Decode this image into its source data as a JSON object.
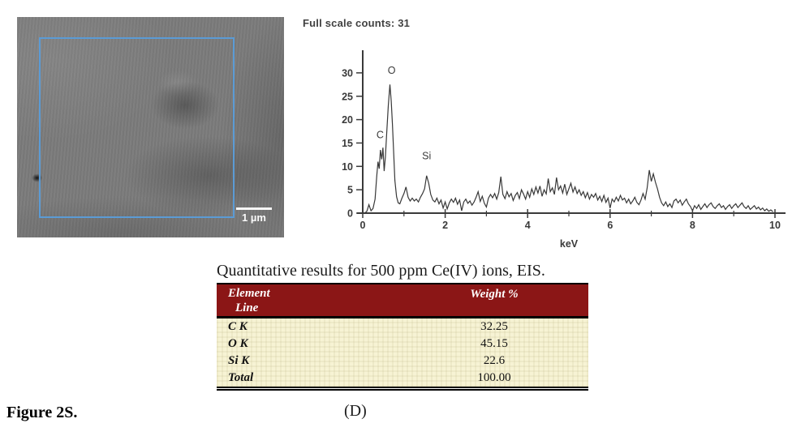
{
  "figure": {
    "figure_label": "Figure 2S.",
    "panel_label": "(D)"
  },
  "sem_image": {
    "scale_bar_label": "1 µm",
    "roi_color": "#5b9bd5",
    "image_base_color": "#7b7b7b"
  },
  "spectrum": {
    "header": "Full scale counts: 31"
  },
  "chart_data": {
    "type": "line",
    "title": "Full scale counts: 31",
    "xlabel": "keV",
    "ylabel": "",
    "xlim": [
      0,
      10.2
    ],
    "ylim": [
      0,
      33
    ],
    "x_ticks": [
      0,
      2,
      4,
      6,
      8,
      10
    ],
    "x_minor_ticks": [
      1,
      3,
      5,
      7,
      9
    ],
    "y_ticks": [
      0,
      5,
      10,
      15,
      20,
      25,
      30
    ],
    "grid": false,
    "legend": "none",
    "axis_color": "#3a3a3a",
    "line_color": "#383838",
    "annotations": [
      {
        "label": "C",
        "x": 0.42,
        "y": 16.0
      },
      {
        "label": "O",
        "x": 0.7,
        "y": 29.8
      },
      {
        "label": "Si",
        "x": 1.55,
        "y": 11.5
      }
    ],
    "series": [
      {
        "name": "EDS spectrum (counts vs keV)",
        "points": [
          [
            0.05,
            0
          ],
          [
            0.1,
            0.4
          ],
          [
            0.15,
            1.8
          ],
          [
            0.2,
            0.5
          ],
          [
            0.25,
            1
          ],
          [
            0.3,
            3
          ],
          [
            0.34,
            8
          ],
          [
            0.37,
            11
          ],
          [
            0.4,
            9.5
          ],
          [
            0.43,
            13.5
          ],
          [
            0.46,
            11.5
          ],
          [
            0.49,
            14
          ],
          [
            0.52,
            9
          ],
          [
            0.55,
            12
          ],
          [
            0.58,
            17
          ],
          [
            0.62,
            23
          ],
          [
            0.66,
            27.5
          ],
          [
            0.69,
            24
          ],
          [
            0.72,
            19
          ],
          [
            0.75,
            13
          ],
          [
            0.78,
            7
          ],
          [
            0.82,
            3.5
          ],
          [
            0.86,
            2.2
          ],
          [
            0.9,
            2
          ],
          [
            0.95,
            3.2
          ],
          [
            1.0,
            4.2
          ],
          [
            1.05,
            5.6
          ],
          [
            1.1,
            3.4
          ],
          [
            1.15,
            2.6
          ],
          [
            1.2,
            3.2
          ],
          [
            1.25,
            2.6
          ],
          [
            1.3,
            3.0
          ],
          [
            1.35,
            2.4
          ],
          [
            1.4,
            3.4
          ],
          [
            1.45,
            4.2
          ],
          [
            1.5,
            5.2
          ],
          [
            1.55,
            8
          ],
          [
            1.6,
            6.4
          ],
          [
            1.65,
            4
          ],
          [
            1.7,
            2.8
          ],
          [
            1.75,
            2.4
          ],
          [
            1.8,
            3.2
          ],
          [
            1.85,
            2
          ],
          [
            1.9,
            2.8
          ],
          [
            1.95,
            1.1
          ],
          [
            2.0,
            2.4
          ],
          [
            2.05,
            0.9
          ],
          [
            2.1,
            2.2
          ],
          [
            2.15,
            3
          ],
          [
            2.2,
            2.3
          ],
          [
            2.25,
            3.2
          ],
          [
            2.3,
            1.9
          ],
          [
            2.35,
            2.8
          ],
          [
            2.4,
            0.5
          ],
          [
            2.45,
            2.4
          ],
          [
            2.5,
            3
          ],
          [
            2.55,
            2.1
          ],
          [
            2.6,
            2.6
          ],
          [
            2.65,
            1.7
          ],
          [
            2.7,
            2.4
          ],
          [
            2.75,
            3.4
          ],
          [
            2.8,
            4.6
          ],
          [
            2.85,
            2.5
          ],
          [
            2.9,
            3.6
          ],
          [
            2.95,
            2.1
          ],
          [
            3.0,
            1.3
          ],
          [
            3.05,
            3.2
          ],
          [
            3.1,
            4
          ],
          [
            3.15,
            3.3
          ],
          [
            3.2,
            4.2
          ],
          [
            3.25,
            3
          ],
          [
            3.3,
            4.4
          ],
          [
            3.35,
            7.8
          ],
          [
            3.4,
            4
          ],
          [
            3.45,
            3.1
          ],
          [
            3.5,
            4.6
          ],
          [
            3.55,
            3.5
          ],
          [
            3.6,
            4.2
          ],
          [
            3.65,
            2.7
          ],
          [
            3.7,
            3.8
          ],
          [
            3.75,
            4.4
          ],
          [
            3.8,
            3.1
          ],
          [
            3.85,
            5
          ],
          [
            3.9,
            4.1
          ],
          [
            3.95,
            3
          ],
          [
            4.0,
            4.6
          ],
          [
            4.05,
            3.4
          ],
          [
            4.1,
            5.2
          ],
          [
            4.15,
            4
          ],
          [
            4.2,
            5.6
          ],
          [
            4.25,
            4.3
          ],
          [
            4.3,
            5.8
          ],
          [
            4.35,
            3.6
          ],
          [
            4.4,
            5
          ],
          [
            4.45,
            4.1
          ],
          [
            4.5,
            7.4
          ],
          [
            4.55,
            4.6
          ],
          [
            4.6,
            5.4
          ],
          [
            4.65,
            4
          ],
          [
            4.7,
            7.6
          ],
          [
            4.75,
            5
          ],
          [
            4.8,
            5.8
          ],
          [
            4.85,
            4.3
          ],
          [
            4.9,
            6.2
          ],
          [
            4.95,
            4
          ],
          [
            5.0,
            5.2
          ],
          [
            5.05,
            6.4
          ],
          [
            5.1,
            4.5
          ],
          [
            5.15,
            5.6
          ],
          [
            5.2,
            4.2
          ],
          [
            5.25,
            5
          ],
          [
            5.3,
            3.8
          ],
          [
            5.35,
            4.6
          ],
          [
            5.4,
            3.3
          ],
          [
            5.45,
            4.4
          ],
          [
            5.5,
            3
          ],
          [
            5.55,
            4
          ],
          [
            5.6,
            3.4
          ],
          [
            5.65,
            4.2
          ],
          [
            5.7,
            2.8
          ],
          [
            5.75,
            3.6
          ],
          [
            5.8,
            2.5
          ],
          [
            5.85,
            3.8
          ],
          [
            5.9,
            2.3
          ],
          [
            5.95,
            3.2
          ],
          [
            6.0,
            1.1
          ],
          [
            6.05,
            3
          ],
          [
            6.1,
            2.4
          ],
          [
            6.15,
            3.4
          ],
          [
            6.2,
            2.6
          ],
          [
            6.25,
            3.8
          ],
          [
            6.3,
            2.8
          ],
          [
            6.35,
            3.2
          ],
          [
            6.4,
            2.2
          ],
          [
            6.45,
            3
          ],
          [
            6.5,
            2
          ],
          [
            6.55,
            2.6
          ],
          [
            6.6,
            3.4
          ],
          [
            6.65,
            2.3
          ],
          [
            6.7,
            1.8
          ],
          [
            6.75,
            2.8
          ],
          [
            6.8,
            4.2
          ],
          [
            6.85,
            3
          ],
          [
            6.9,
            5.4
          ],
          [
            6.95,
            9.2
          ],
          [
            7.0,
            6.8
          ],
          [
            7.05,
            8.4
          ],
          [
            7.1,
            6.6
          ],
          [
            7.15,
            5.2
          ],
          [
            7.2,
            3.4
          ],
          [
            7.25,
            2.2
          ],
          [
            7.3,
            1.6
          ],
          [
            7.35,
            2.4
          ],
          [
            7.4,
            1.4
          ],
          [
            7.45,
            2
          ],
          [
            7.5,
            1.2
          ],
          [
            7.55,
            2.6
          ],
          [
            7.6,
            3
          ],
          [
            7.65,
            2.2
          ],
          [
            7.7,
            2.8
          ],
          [
            7.75,
            1.7
          ],
          [
            7.8,
            2.4
          ],
          [
            7.85,
            3
          ],
          [
            7.9,
            2
          ],
          [
            7.95,
            1.4
          ],
          [
            8.0,
            0.5
          ],
          [
            8.05,
            1.6
          ],
          [
            8.1,
            1
          ],
          [
            8.15,
            1.8
          ],
          [
            8.2,
            0.8
          ],
          [
            8.25,
            1.4
          ],
          [
            8.3,
            2
          ],
          [
            8.35,
            1.2
          ],
          [
            8.4,
            1.8
          ],
          [
            8.45,
            2.2
          ],
          [
            8.5,
            1.4
          ],
          [
            8.55,
            1
          ],
          [
            8.6,
            1.6
          ],
          [
            8.65,
            2
          ],
          [
            8.7,
            1.2
          ],
          [
            8.75,
            1.6
          ],
          [
            8.8,
            0.8
          ],
          [
            8.85,
            1.4
          ],
          [
            8.9,
            1.8
          ],
          [
            8.95,
            1
          ],
          [
            9.0,
            1.6
          ],
          [
            9.05,
            2
          ],
          [
            9.1,
            1.2
          ],
          [
            9.2,
            2.2
          ],
          [
            9.25,
            1.4
          ],
          [
            9.3,
            1
          ],
          [
            9.35,
            1.6
          ],
          [
            9.4,
            0.8
          ],
          [
            9.5,
            1.6
          ],
          [
            9.55,
            0.9
          ],
          [
            9.6,
            1.3
          ],
          [
            9.65,
            0.7
          ],
          [
            9.7,
            1.1
          ],
          [
            9.75,
            0.5
          ],
          [
            9.8,
            0.9
          ],
          [
            9.85,
            0.4
          ],
          [
            9.9,
            0.7
          ],
          [
            9.95,
            0.3
          ]
        ]
      }
    ]
  },
  "table": {
    "title": "Quantitative results for 500 ppm Ce(IV) ions, EIS.",
    "header_bg": "#8b1616",
    "body_bg": "#f7f3d4",
    "header_element_line1": "Element",
    "header_element_line2": "Line",
    "header_weight": "Weight %",
    "rows": [
      {
        "element": "C K",
        "weight": "32.25"
      },
      {
        "element": "O K",
        "weight": "45.15"
      },
      {
        "element": "Si K",
        "weight": "22.6"
      },
      {
        "element": "Total",
        "weight": "100.00"
      }
    ]
  }
}
